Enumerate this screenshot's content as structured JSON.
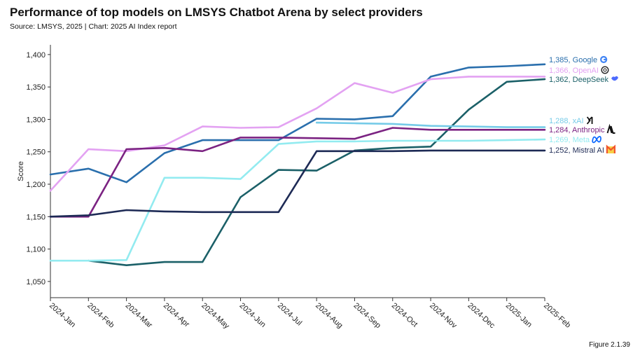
{
  "chart_data": {
    "type": "line",
    "title": "Performance of top models on LMSYS Chatbot Arena by select providers",
    "subtitle": "Source: LMSYS, 2025 | Chart: 2025 AI Index report",
    "figure_label": "Figure 2.1.39",
    "xlabel": "",
    "ylabel": "Score",
    "ylim": [
      1025,
      1415
    ],
    "yticks": [
      1050,
      1100,
      1150,
      1200,
      1250,
      1300,
      1350,
      1400
    ],
    "ytick_labels": [
      "1,050",
      "1,100",
      "1,150",
      "1,200",
      "1,250",
      "1,300",
      "1,350",
      "1,400"
    ],
    "categories": [
      "2024-Jan",
      "2024-Feb",
      "2024-Mar",
      "2024-Apr",
      "2024-May",
      "2024-Jun",
      "2024-Jul",
      "2024-Aug",
      "2024-Sep",
      "2024-Oct",
      "2024-Nov",
      "2024-Dec",
      "2025-Jan",
      "2025-Feb"
    ],
    "grid": false,
    "series": [
      {
        "name": "Google",
        "end_label": "1,385, Google",
        "icon": "google-icon",
        "color": "#2a6fad",
        "values": [
          1215,
          1224,
          1203,
          1248,
          1268,
          1268,
          1268,
          1301,
          1300,
          1305,
          1366,
          1380,
          1382,
          1385
        ]
      },
      {
        "name": "OpenAI",
        "end_label": "1,366, OpenAI",
        "icon": "openai-icon",
        "color": "#e3a2f2",
        "values": [
          1190,
          1254,
          1251,
          1260,
          1289,
          1287,
          1288,
          1317,
          1356,
          1341,
          1362,
          1366,
          1366,
          1366
        ]
      },
      {
        "name": "DeepSeek",
        "end_label": "1,362, DeepSeek",
        "icon": "deepseek-icon",
        "color": "#1b6068",
        "values": [
          null,
          1082,
          1075,
          1080,
          1080,
          1180,
          1222,
          1221,
          1252,
          1256,
          1258,
          1315,
          1358,
          1362
        ]
      },
      {
        "name": "xAI",
        "end_label": "1,288, xAI",
        "icon": "xai-icon",
        "color": "#76cbe8",
        "values": [
          null,
          null,
          null,
          null,
          null,
          null,
          null,
          1295,
          1294,
          1293,
          1290,
          1289,
          1288,
          1288
        ]
      },
      {
        "name": "Anthropic",
        "end_label": "1,284, Anthropic",
        "icon": "anthropic-icon",
        "color": "#7b2382",
        "values": [
          1150,
          1150,
          1254,
          1256,
          1251,
          1272,
          1272,
          1271,
          1270,
          1287,
          1284,
          1284,
          1284,
          1284
        ]
      },
      {
        "name": "Meta",
        "end_label": "1,269, Meta",
        "icon": "meta-icon",
        "color": "#93ebf0",
        "values": [
          1082,
          1082,
          1083,
          1210,
          1210,
          1208,
          1262,
          1266,
          1266,
          1267,
          1267,
          1267,
          1268,
          1269
        ]
      },
      {
        "name": "Mistral AI",
        "end_label": "1,252, Mistral AI",
        "icon": "mistral-icon",
        "color": "#1d2a55",
        "values": [
          1150,
          1152,
          1160,
          1158,
          1157,
          1157,
          1157,
          1251,
          1251,
          1251,
          1252,
          1252,
          1252,
          1252
        ]
      }
    ]
  }
}
